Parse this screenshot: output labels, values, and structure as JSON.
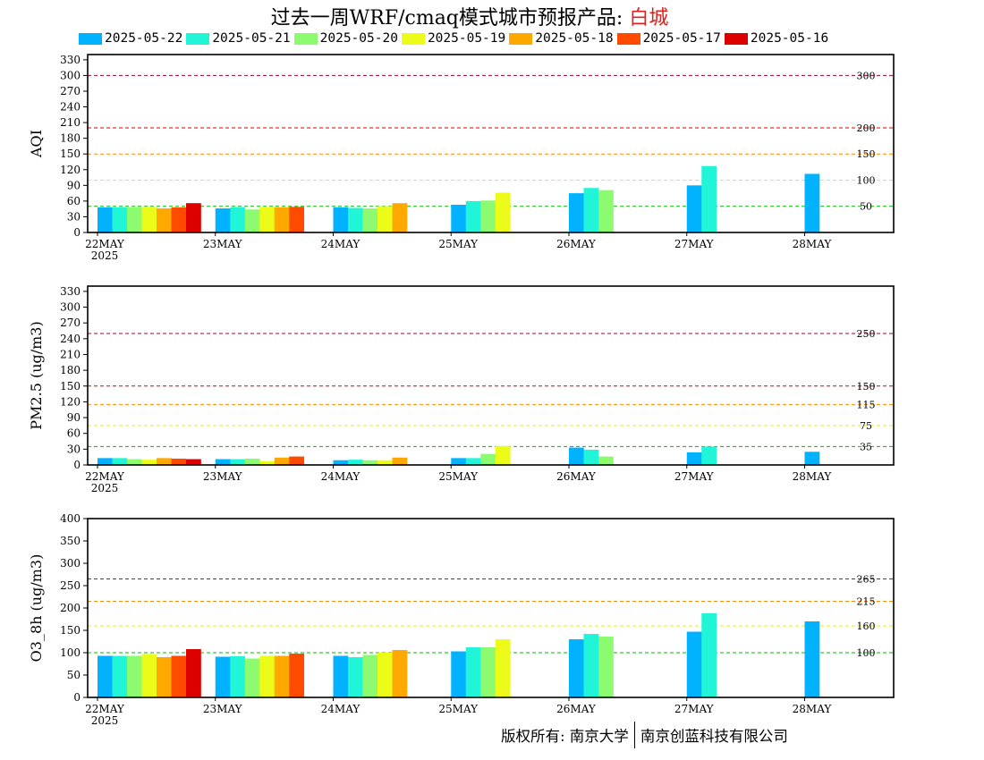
{
  "title": {
    "main": "过去一周WRF/cmaq模式城市预报产品: ",
    "city": "白城"
  },
  "legend": [
    {
      "label": "2025-05-22",
      "color": "#00b2ff"
    },
    {
      "label": "2025-05-21",
      "color": "#21f5d8"
    },
    {
      "label": "2025-05-20",
      "color": "#8dfb70"
    },
    {
      "label": "2025-05-19",
      "color": "#ecfb17"
    },
    {
      "label": "2025-05-18",
      "color": "#ffa800"
    },
    {
      "label": "2025-05-17",
      "color": "#ff4b00"
    },
    {
      "label": "2025-05-16",
      "color": "#dc0000"
    }
  ],
  "footer": {
    "left": "版权所有: 南京大学",
    "right": "南京创蓝科技有限公司"
  },
  "chart_data": [
    {
      "type": "bar",
      "ylabel": "AQI",
      "ylim": [
        0,
        340
      ],
      "yticks": [
        0,
        30,
        60,
        90,
        120,
        150,
        180,
        210,
        240,
        270,
        300,
        330
      ],
      "categories": [
        "22MAY",
        "23MAY",
        "24MAY",
        "25MAY",
        "26MAY",
        "27MAY",
        "28MAY"
      ],
      "year_label": "2025",
      "thresholds": [
        {
          "value": 300,
          "label": "300",
          "color": "#990033"
        },
        {
          "value": 200,
          "label": "200",
          "color": "#dd0000"
        },
        {
          "value": 150,
          "label": "150",
          "color": "#ff8800"
        },
        {
          "value": 100,
          "label": "100",
          "color": "#eeee00"
        },
        {
          "value": 50,
          "label": "50",
          "color": "#00bb00"
        }
      ],
      "series": [
        {
          "name": "2025-05-22",
          "values": [
            48,
            46,
            48,
            53,
            75,
            90,
            112
          ]
        },
        {
          "name": "2025-05-21",
          "values": [
            48,
            48,
            47,
            60,
            85,
            127,
            null
          ]
        },
        {
          "name": "2025-05-20",
          "values": [
            48,
            44,
            46,
            61,
            81,
            null,
            null
          ]
        },
        {
          "name": "2025-05-19",
          "values": [
            48,
            48,
            50,
            76,
            null,
            null,
            null
          ]
        },
        {
          "name": "2025-05-18",
          "values": [
            46,
            48,
            56,
            null,
            null,
            null,
            null
          ]
        },
        {
          "name": "2025-05-17",
          "values": [
            48,
            49,
            null,
            null,
            null,
            null,
            null
          ]
        },
        {
          "name": "2025-05-16",
          "values": [
            56,
            null,
            null,
            null,
            null,
            null,
            null
          ]
        }
      ]
    },
    {
      "type": "bar",
      "ylabel": "PM2.5 (ug/m3)",
      "ylim": [
        0,
        340
      ],
      "yticks": [
        0,
        30,
        60,
        90,
        120,
        150,
        180,
        210,
        240,
        270,
        300,
        330
      ],
      "categories": [
        "22MAY",
        "23MAY",
        "24MAY",
        "25MAY",
        "26MAY",
        "27MAY",
        "28MAY"
      ],
      "year_label": "2025",
      "thresholds": [
        {
          "value": 250,
          "label": "250",
          "color": "#990033"
        },
        {
          "value": 150,
          "label": "150",
          "color": "#dd0000"
        },
        {
          "value": 115,
          "label": "115",
          "color": "#ff8800"
        },
        {
          "value": 75,
          "label": "75",
          "color": "#eeee00"
        },
        {
          "value": 35,
          "label": "35",
          "color": "#00bb00"
        }
      ],
      "series": [
        {
          "name": "2025-05-22",
          "values": [
            13,
            11,
            9,
            13,
            33,
            24,
            25
          ]
        },
        {
          "name": "2025-05-21",
          "values": [
            13,
            11,
            10,
            13,
            29,
            35,
            null
          ]
        },
        {
          "name": "2025-05-20",
          "values": [
            11,
            12,
            9,
            21,
            16,
            null,
            null
          ]
        },
        {
          "name": "2025-05-19",
          "values": [
            10,
            7,
            9,
            36,
            null,
            null,
            null
          ]
        },
        {
          "name": "2025-05-18",
          "values": [
            13,
            14,
            14,
            null,
            null,
            null,
            null
          ]
        },
        {
          "name": "2025-05-17",
          "values": [
            12,
            16,
            null,
            null,
            null,
            null,
            null
          ]
        },
        {
          "name": "2025-05-16",
          "values": [
            11,
            null,
            null,
            null,
            null,
            null,
            null
          ]
        }
      ]
    },
    {
      "type": "bar",
      "ylabel": "O3_8h (ug/m3)",
      "ylim": [
        0,
        400
      ],
      "yticks": [
        0,
        50,
        100,
        150,
        200,
        250,
        300,
        350,
        400
      ],
      "categories": [
        "22MAY",
        "23MAY",
        "24MAY",
        "25MAY",
        "26MAY",
        "27MAY",
        "28MAY"
      ],
      "year_label": "2025",
      "thresholds": [
        {
          "value": 265,
          "label": "265",
          "color": "#dd0000"
        },
        {
          "value": 215,
          "label": "215",
          "color": "#ff8800"
        },
        {
          "value": 160,
          "label": "160",
          "color": "#eeee00"
        },
        {
          "value": 100,
          "label": "100",
          "color": "#00bb00"
        }
      ],
      "series": [
        {
          "name": "2025-05-22",
          "values": [
            93,
            91,
            93,
            103,
            130,
            147,
            170
          ]
        },
        {
          "name": "2025-05-21",
          "values": [
            93,
            92,
            90,
            112,
            142,
            188,
            null
          ]
        },
        {
          "name": "2025-05-20",
          "values": [
            93,
            87,
            95,
            112,
            136,
            null,
            null
          ]
        },
        {
          "name": "2025-05-19",
          "values": [
            97,
            93,
            100,
            130,
            null,
            null,
            null
          ]
        },
        {
          "name": "2025-05-18",
          "values": [
            90,
            93,
            106,
            null,
            null,
            null,
            null
          ]
        },
        {
          "name": "2025-05-17",
          "values": [
            93,
            98,
            null,
            null,
            null,
            null,
            null
          ]
        },
        {
          "name": "2025-05-16",
          "values": [
            108,
            null,
            null,
            null,
            null,
            null,
            null
          ]
        }
      ]
    }
  ]
}
